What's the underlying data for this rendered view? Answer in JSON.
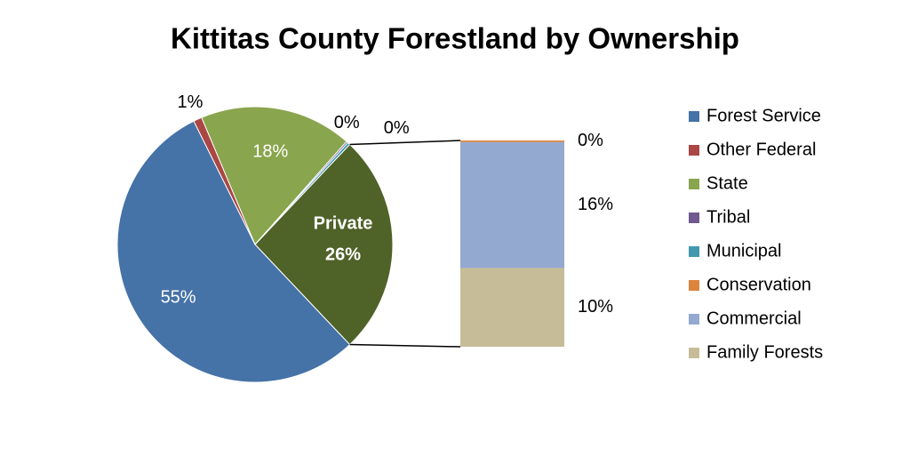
{
  "chart_data": {
    "type": "pie_of_bar",
    "title": "Kittitas County Forestland by Ownership",
    "categories": [
      "Forest Service",
      "Other Federal",
      "State",
      "Tribal",
      "Municipal",
      "Conservation",
      "Commercial",
      "Family Forests"
    ],
    "values": [
      55,
      1,
      18,
      0.2,
      0.3,
      0.2,
      16,
      10
    ],
    "value_labels": [
      "55%",
      "1%",
      "18%",
      "0%",
      "0%",
      "0%",
      "16%",
      "10%"
    ],
    "colors": [
      "#4572a7",
      "#aa4643",
      "#89a54e",
      "#71588f",
      "#4198af",
      "#db843d",
      "#93a9cf",
      "#c6bd98"
    ],
    "secondary_count": 3,
    "other_label": "Private",
    "other_value": 26,
    "other_value_label": "26%",
    "other_color": "#4f6228"
  }
}
